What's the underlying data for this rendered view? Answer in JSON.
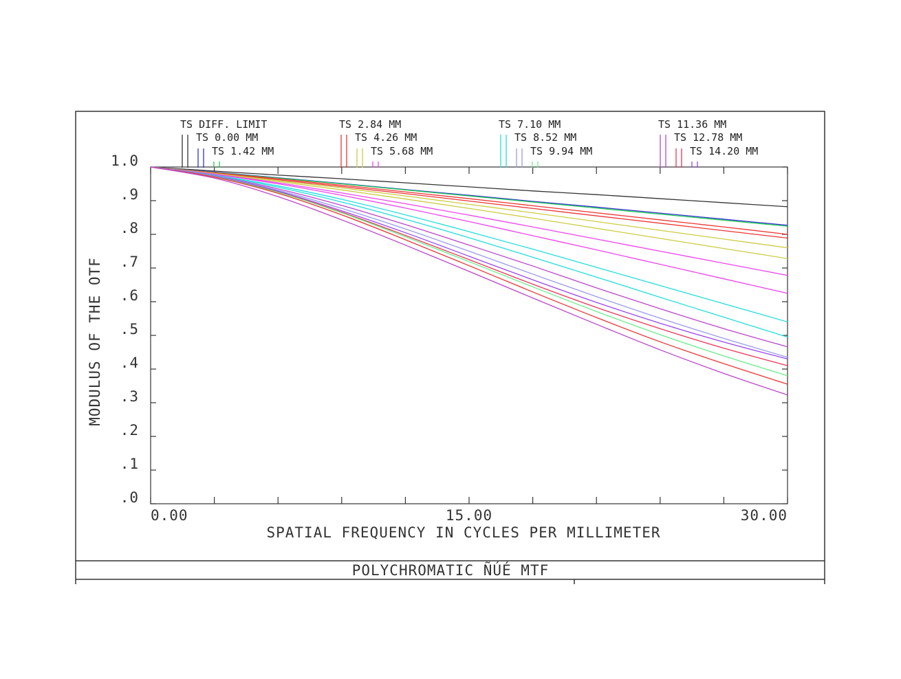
{
  "chart_data": {
    "type": "line",
    "title": "POLYCHROMATIC ÑÚÉ  MTF",
    "xlabel": "SPATIAL FREQUENCY IN CYCLES PER MILLIMETER",
    "ylabel": "MODULUS OF THE OTF",
    "xlim": [
      0,
      30
    ],
    "ylim": [
      0,
      1
    ],
    "x_tick_labels": [
      "0.00",
      "15.00",
      "30.00"
    ],
    "x_tick_values": [
      0,
      15,
      30
    ],
    "y_tick_labels": [
      ".0",
      ".1",
      ".2",
      ".3",
      ".4",
      ".5",
      ".6",
      ".7",
      ".8",
      ".9",
      "1.0"
    ],
    "y_tick_values": [
      0,
      0.1,
      0.2,
      0.3,
      0.4,
      0.5,
      0.6,
      0.7,
      0.8,
      0.9,
      1.0
    ],
    "grid": false,
    "legend_placement": "top",
    "x": [
      0,
      3,
      6,
      9,
      12,
      15,
      18,
      21,
      24,
      27,
      30
    ],
    "legend_groups": [
      {
        "label": "TS DIFF. LIMIT",
        "colors": [
          "#333333",
          "#333333"
        ]
      },
      {
        "label": "TS 0.00 MM",
        "colors": [
          "#3333cc",
          "#3333cc"
        ]
      },
      {
        "label": "TS 1.42 MM",
        "colors": [
          "#22cc55",
          "#22cc55"
        ]
      },
      {
        "label": "TS 2.84 MM",
        "colors": [
          "#ee3333",
          "#ee3333"
        ]
      },
      {
        "label": "TS 4.26 MM",
        "colors": [
          "#cccc44",
          "#cccc44"
        ]
      },
      {
        "label": "TS 5.68 MM",
        "colors": [
          "#ee44ee",
          "#ee44ee"
        ]
      },
      {
        "label": "TS 7.10 MM",
        "colors": [
          "#22dddd",
          "#22dddd"
        ]
      },
      {
        "label": "TS 8.52 MM",
        "colors": [
          "#9999ee",
          "#9999ee"
        ]
      },
      {
        "label": "TS 9.94 MM",
        "colors": [
          "#66ee88",
          "#66ee88"
        ]
      },
      {
        "label": "TS 11.36 MM",
        "colors": [
          "#bb44cc",
          "#bb44cc"
        ]
      },
      {
        "label": "TS 12.78 MM",
        "colors": [
          "#ee3355",
          "#ee3355"
        ]
      },
      {
        "label": "TS 14.20 MM",
        "colors": [
          "#9944ee",
          "#9944ee"
        ]
      }
    ],
    "series": [
      {
        "color": "#333333",
        "values": [
          1.0,
          0.988,
          0.976,
          0.965,
          0.953,
          0.941,
          0.929,
          0.918,
          0.906,
          0.894,
          0.882
        ]
      },
      {
        "color": "#3333cc",
        "values": [
          1.0,
          0.985,
          0.968,
          0.951,
          0.933,
          0.916,
          0.898,
          0.881,
          0.863,
          0.845,
          0.827
        ]
      },
      {
        "color": "#22cc55",
        "values": [
          1.0,
          0.984,
          0.967,
          0.95,
          0.932,
          0.914,
          0.896,
          0.878,
          0.86,
          0.842,
          0.824
        ]
      },
      {
        "color": "#ee3333",
        "values": [
          1.0,
          0.983,
          0.965,
          0.946,
          0.926,
          0.906,
          0.885,
          0.864,
          0.843,
          0.822,
          0.8
        ]
      },
      {
        "color": "#ee3333",
        "values": [
          1.0,
          0.982,
          0.962,
          0.942,
          0.921,
          0.899,
          0.877,
          0.855,
          0.833,
          0.811,
          0.789
        ]
      },
      {
        "color": "#cccc44",
        "values": [
          1.0,
          0.981,
          0.96,
          0.938,
          0.914,
          0.889,
          0.864,
          0.838,
          0.812,
          0.786,
          0.76
        ]
      },
      {
        "color": "#cccc44",
        "values": [
          1.0,
          0.98,
          0.957,
          0.932,
          0.905,
          0.877,
          0.848,
          0.818,
          0.788,
          0.758,
          0.728
        ]
      },
      {
        "color": "#ee44ee",
        "values": [
          1.0,
          0.979,
          0.953,
          0.923,
          0.891,
          0.857,
          0.822,
          0.786,
          0.75,
          0.714,
          0.678
        ]
      },
      {
        "color": "#ee44ee",
        "values": [
          1.0,
          0.978,
          0.95,
          0.916,
          0.878,
          0.838,
          0.796,
          0.754,
          0.711,
          0.668,
          0.625
        ]
      },
      {
        "color": "#22dddd",
        "values": [
          1.0,
          0.976,
          0.944,
          0.904,
          0.858,
          0.808,
          0.756,
          0.702,
          0.648,
          0.594,
          0.54
        ]
      },
      {
        "color": "#22dddd",
        "values": [
          1.0,
          0.975,
          0.94,
          0.896,
          0.845,
          0.79,
          0.732,
          0.673,
          0.613,
          0.554,
          0.495
        ]
      },
      {
        "color": "#bb44cc",
        "values": [
          1.0,
          0.974,
          0.935,
          0.886,
          0.829,
          0.768,
          0.706,
          0.641,
          0.579,
          0.52,
          0.466
        ]
      },
      {
        "color": "#9999ee",
        "values": [
          1.0,
          0.973,
          0.931,
          0.877,
          0.816,
          0.75,
          0.682,
          0.615,
          0.551,
          0.491,
          0.435
        ]
      },
      {
        "color": "#9944ee",
        "values": [
          1.0,
          0.972,
          0.928,
          0.87,
          0.805,
          0.735,
          0.665,
          0.598,
          0.536,
          0.48,
          0.43
        ]
      },
      {
        "color": "#ee3355",
        "values": [
          1.0,
          0.971,
          0.926,
          0.866,
          0.797,
          0.725,
          0.652,
          0.583,
          0.52,
          0.462,
          0.41
        ]
      },
      {
        "color": "#66ee88",
        "values": [
          1.0,
          0.971,
          0.925,
          0.864,
          0.793,
          0.719,
          0.644,
          0.571,
          0.502,
          0.439,
          0.38
        ]
      },
      {
        "color": "#ee3333",
        "values": [
          1.0,
          0.97,
          0.922,
          0.858,
          0.784,
          0.707,
          0.629,
          0.553,
          0.481,
          0.416,
          0.355
        ]
      },
      {
        "color": "#bb44cc",
        "values": [
          1.0,
          0.967,
          0.912,
          0.843,
          0.768,
          0.69,
          0.611,
          0.533,
          0.457,
          0.387,
          0.323
        ]
      }
    ]
  }
}
